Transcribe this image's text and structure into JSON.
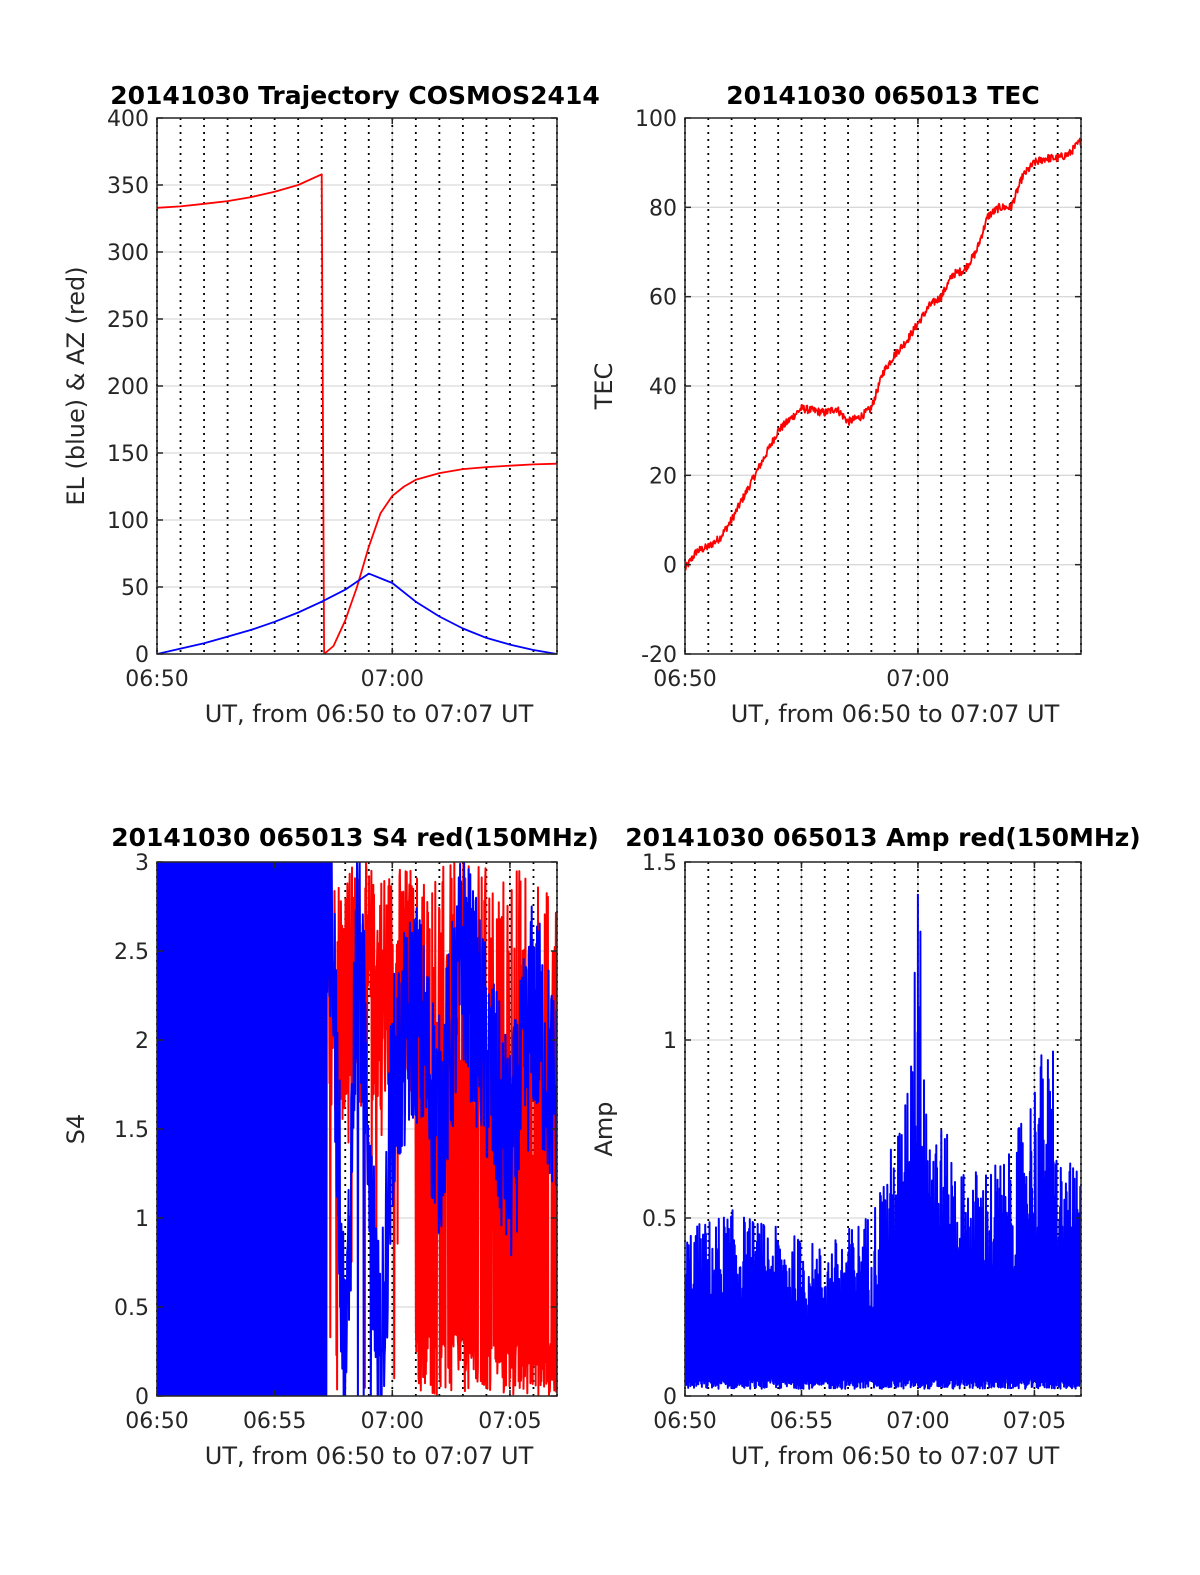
{
  "figure": {
    "x_axis_label": "UT, from 06:50 to 07:07 UT",
    "colors": {
      "red": "#ff0000",
      "blue": "#0000ff",
      "grid": "#d9d9d9"
    }
  },
  "chart_data": [
    {
      "type": "line",
      "title": "20141030 Trajectory COSMOS2414",
      "xlabel": "UT, from 06:50 to 07:07 UT",
      "ylabel": "EL (blue) & AZ (red)",
      "x_range": [
        "06:50",
        "07:07"
      ],
      "x_ticks": [
        "06:50",
        "07:00"
      ],
      "ylim": [
        0,
        400
      ],
      "y_ticks": [
        0,
        50,
        100,
        150,
        200,
        250,
        300,
        350,
        400
      ],
      "grid": true,
      "series": [
        {
          "color": "#ff0000",
          "x": [
            "06:50",
            "06:51",
            "06:52",
            "06:53",
            "06:54",
            "06:55",
            "06:56",
            "06:57",
            "06:57.1",
            "06:57.5",
            "06:58",
            "06:58.5",
            "06:59",
            "06:59.5",
            "07:00",
            "07:00.5",
            "07:01",
            "07:02",
            "07:03",
            "07:04",
            "07:05",
            "07:06",
            "07:07"
          ],
          "values": [
            333,
            334,
            336,
            338,
            341,
            345,
            350,
            358,
            0,
            6,
            25,
            50,
            80,
            105,
            118,
            125,
            130,
            135,
            138,
            139.5,
            140.5,
            141.5,
            142
          ]
        },
        {
          "color": "#0000ff",
          "x": [
            "06:50",
            "06:51",
            "06:52",
            "06:53",
            "06:54",
            "06:55",
            "06:56",
            "06:57",
            "06:58",
            "06:59",
            "07:00",
            "07:01",
            "07:02",
            "07:03",
            "07:04",
            "07:05",
            "07:06",
            "07:07"
          ],
          "values": [
            0,
            4,
            8,
            13,
            18,
            24,
            31,
            39,
            48,
            60,
            53,
            39,
            28,
            19,
            12,
            7,
            3,
            0
          ]
        }
      ]
    },
    {
      "type": "line",
      "title": "20141030 065013 TEC",
      "xlabel": "UT, from 06:50 to 07:07 UT",
      "ylabel": "TEC",
      "x_range": [
        "06:50",
        "07:07"
      ],
      "x_ticks": [
        "06:50",
        "07:00"
      ],
      "ylim": [
        -20,
        100
      ],
      "y_ticks": [
        -20,
        0,
        20,
        40,
        60,
        80,
        100
      ],
      "grid": true,
      "series": [
        {
          "color": "#ff0000",
          "x": [
            "06:50",
            "06:50.5",
            "06:51",
            "06:51.5",
            "06:52",
            "06:53",
            "06:54",
            "06:55",
            "06:56",
            "06:56.5",
            "06:57",
            "06:57.5",
            "06:58",
            "06:58.5",
            "06:59",
            "06:59.5",
            "07:00",
            "07:00.5",
            "07:01",
            "07:01.5",
            "07:02",
            "07:02.5",
            "07:03",
            "07:03.5",
            "07:04",
            "07:04.5",
            "07:05",
            "07:05.5",
            "07:06",
            "07:06.5",
            "07:07"
          ],
          "values": [
            -1,
            3,
            4,
            6,
            10,
            20,
            30,
            35,
            34,
            35,
            32,
            33,
            35,
            43,
            47,
            50,
            54,
            58,
            60,
            65,
            66,
            70,
            78,
            80,
            80,
            87,
            90,
            91,
            91,
            92,
            95
          ]
        }
      ]
    },
    {
      "type": "line",
      "title": "20141030 065013 S4 red(150MHz)",
      "xlabel": "UT, from 06:50 to 07:07 UT",
      "ylabel": "S4",
      "x_range": [
        "06:50",
        "07:07"
      ],
      "x_ticks": [
        "06:50",
        "06:55",
        "07:00",
        "07:05"
      ],
      "ylim": [
        0,
        3
      ],
      "y_ticks": [
        0,
        0.5,
        1,
        1.5,
        2,
        2.5,
        3
      ],
      "grid": true,
      "series": [
        {
          "color": "#ff0000",
          "x": [
            "06:57.5",
            "07:00",
            "07:02",
            "07:04",
            "07:05",
            "07:06",
            "07:07"
          ],
          "values": [
            3,
            0,
            3,
            0,
            1.2,
            0,
            1.2
          ]
        },
        {
          "color": "#0000ff",
          "x": [
            "06:50",
            "06:55",
            "06:57",
            "06:57.5",
            "06:58",
            "06:58.5",
            "06:59",
            "06:59.5",
            "07:00",
            "07:01",
            "07:02",
            "07:03",
            "07:04",
            "07:05",
            "07:06",
            "07:07"
          ],
          "values": [
            3,
            3,
            3,
            2.4,
            0,
            2.6,
            1.6,
            0,
            1.7,
            2.2,
            1.5,
            2.5,
            1.9,
            1.3,
            2.2,
            1.6
          ]
        }
      ]
    },
    {
      "type": "line",
      "title": "20141030 065013 Amp red(150MHz)",
      "xlabel": "UT, from 06:50 to 07:07 UT",
      "ylabel": "Amp",
      "x_range": [
        "06:50",
        "07:07"
      ],
      "x_ticks": [
        "06:50",
        "06:55",
        "07:00",
        "07:05"
      ],
      "ylim": [
        0,
        1.5
      ],
      "y_ticks": [
        0,
        0.5,
        1,
        1.5
      ],
      "grid": true,
      "series": [
        {
          "color": "#0000ff",
          "x": [
            "06:50",
            "06:52",
            "06:54",
            "06:56",
            "06:58",
            "06:59.5",
            "07:00",
            "07:00.5",
            "07:02",
            "07:04",
            "07:05.5",
            "07:06",
            "07:07"
          ],
          "values": [
            0.45,
            0.5,
            0.45,
            0.4,
            0.5,
            0.8,
            1.41,
            0.8,
            0.6,
            0.65,
            0.97,
            0.65,
            0.6
          ]
        }
      ]
    }
  ]
}
